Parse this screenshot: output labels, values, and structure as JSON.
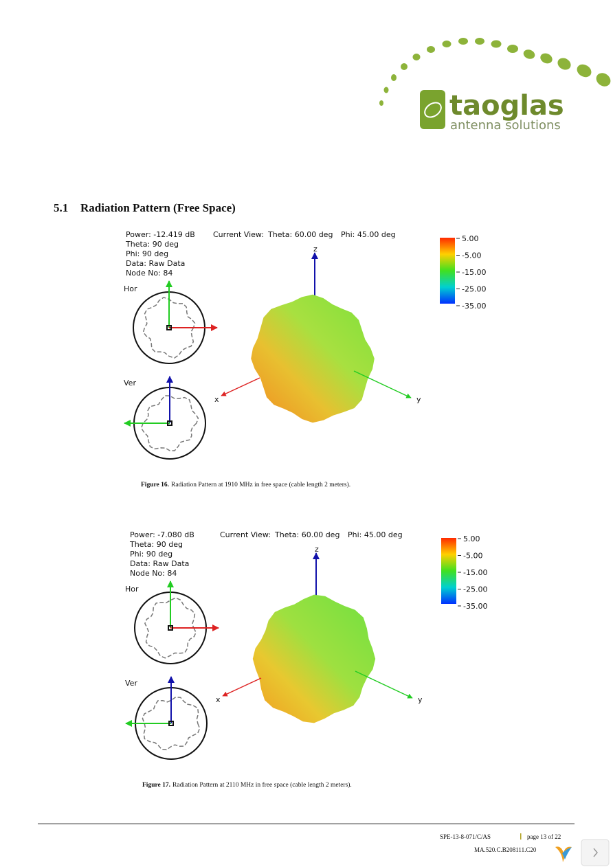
{
  "logo": {
    "name": "taoglas",
    "tagline": "antenna solutions"
  },
  "section": {
    "number": "5.1",
    "title": "Radiation Pattern (Free Space)"
  },
  "figures": [
    {
      "info": [
        "Power: -12.419 dB",
        "Theta: 90 deg",
        "Phi: 90 deg",
        "Data: Raw Data",
        "Node No: 84"
      ],
      "view_label": "Current View:",
      "view_theta": "Theta: 60.00 deg",
      "view_phi": "Phi: 45.00 deg",
      "hor_label": "Hor",
      "ver_label": "Ver",
      "axes": {
        "z": "z",
        "x": "x",
        "y": "y"
      },
      "scale": [
        "5.00",
        "-5.00",
        "-15.00",
        "-25.00",
        "-35.00"
      ],
      "caption_label": "Figure 16.",
      "caption_text": "Radiation Pattern at 1910 MHz in free space (cable length 2 meters)."
    },
    {
      "info": [
        "Power: -7.080 dB",
        "Theta: 90 deg",
        "Phi: 90 deg",
        "Data: Raw Data",
        "Node No: 84"
      ],
      "view_label": "Current View:",
      "view_theta": "Theta: 60.00 deg",
      "view_phi": "Phi: 45.00 deg",
      "hor_label": "Hor",
      "ver_label": "Ver",
      "axes": {
        "z": "z",
        "x": "x",
        "y": "y"
      },
      "scale": [
        "5.00",
        "-5.00",
        "-15.00",
        "-25.00",
        "-35.00"
      ],
      "caption_label": "Figure 17.",
      "caption_text": "Radiation Pattern at 2110 MHz in free space (cable length 2 meters)."
    }
  ],
  "footer": {
    "doc_id": "SPE-13-8-071/C/AS",
    "page": "page 13 of 22",
    "part": "MA.520.C.B208111.C20"
  }
}
